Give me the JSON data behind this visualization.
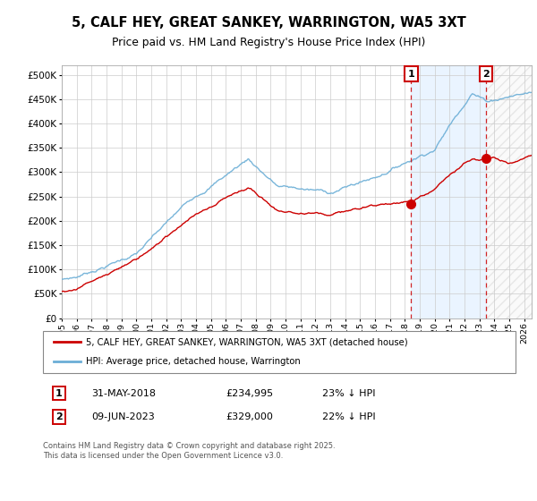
{
  "title_line1": "5, CALF HEY, GREAT SANKEY, WARRINGTON, WA5 3XT",
  "title_line2": "Price paid vs. HM Land Registry's House Price Index (HPI)",
  "legend_line1": "5, CALF HEY, GREAT SANKEY, WARRINGTON, WA5 3XT (detached house)",
  "legend_line2": "HPI: Average price, detached house, Warrington",
  "annotation1_date": "31-MAY-2018",
  "annotation1_price": "£234,995",
  "annotation1_hpi": "23% ↓ HPI",
  "annotation2_date": "09-JUN-2023",
  "annotation2_price": "£329,000",
  "annotation2_hpi": "22% ↓ HPI",
  "footer": "Contains HM Land Registry data © Crown copyright and database right 2025.\nThis data is licensed under the Open Government Licence v3.0.",
  "hpi_color": "#6baed6",
  "price_color": "#cc0000",
  "dashed_line_color": "#cc0000",
  "background_color": "#ffffff",
  "grid_color": "#cccccc",
  "ylim": [
    0,
    520000
  ],
  "yticks": [
    0,
    50000,
    100000,
    150000,
    200000,
    250000,
    300000,
    350000,
    400000,
    450000,
    500000
  ],
  "sale1_year": 2018.41,
  "sale1_price": 234995,
  "sale2_year": 2023.44,
  "sale2_price": 329000,
  "xmin": 1995,
  "xmax": 2026.5
}
